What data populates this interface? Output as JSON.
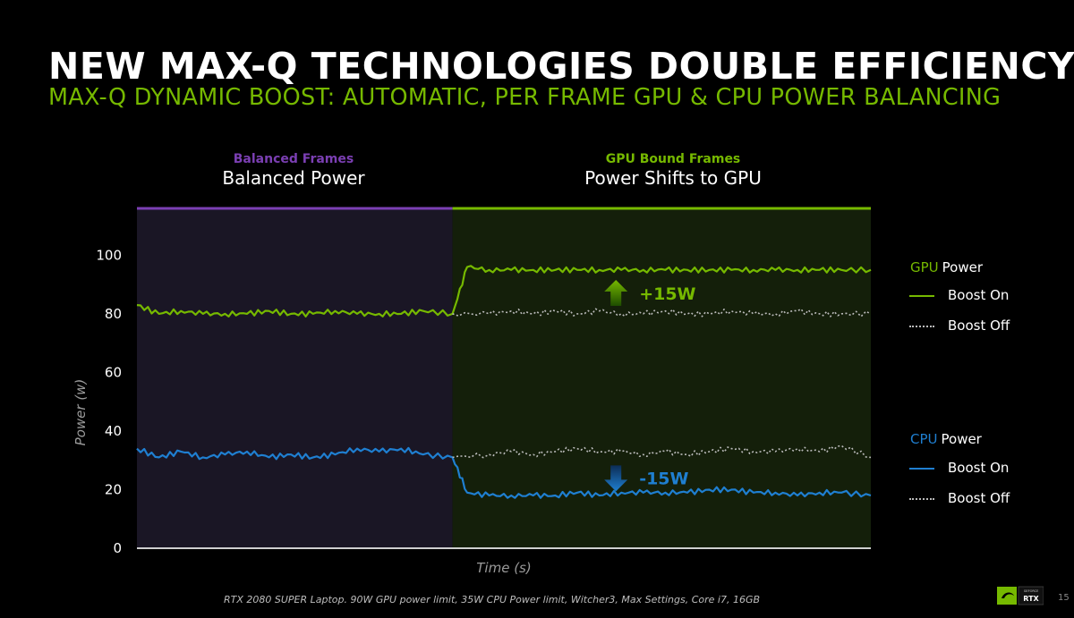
{
  "slide": {
    "title": "NEW MAX-Q TECHNOLOGIES DOUBLE EFFICIENCY",
    "subtitle": "MAX-Q DYNAMIC BOOST: AUTOMATIC, PER FRAME GPU & CPU POWER BALANCING",
    "footer": "RTX 2080 SUPER Laptop. 90W GPU power limit, 35W CPU Power limit, Witcher3, Max Settings, Core i7, 16GB",
    "page_number": "15",
    "logo_text": "RTX",
    "logo_small_text": "GEFORCE"
  },
  "colors": {
    "gpu": "#76b900",
    "cpu": "#1f7fd1",
    "balanced": "#7b3fb3",
    "offline": "#bbbbbb"
  },
  "chart_data": {
    "type": "line",
    "xlabel": "Time (s)",
    "ylabel": "Power (w)",
    "ylim": [
      0,
      116
    ],
    "yticks": [
      0,
      20,
      40,
      60,
      80,
      100
    ],
    "regions": [
      {
        "small": "Balanced Frames",
        "big": "Balanced Power",
        "x_range": [
          0,
          43
        ]
      },
      {
        "small": "GPU Bound Frames",
        "big": "Power Shifts to GPU",
        "x_range": [
          43,
          100
        ]
      }
    ],
    "annotations": [
      {
        "text": "+15W",
        "x": 66,
        "y": 87,
        "direction": "up"
      },
      {
        "text": "-15W",
        "x": 66,
        "y": 24,
        "direction": "down"
      }
    ],
    "legend": [
      {
        "group": "GPU",
        "group_suffix": "Power",
        "entries": [
          "Boost On",
          "Boost Off"
        ]
      },
      {
        "group": "CPU",
        "group_suffix": "Power",
        "entries": [
          "Boost On",
          "Boost Off"
        ]
      }
    ],
    "series": [
      {
        "name": "GPU Power Boost On",
        "style": "solid",
        "color": "gpu",
        "x": [
          0,
          3,
          6,
          9,
          12,
          15,
          18,
          21,
          24,
          27,
          30,
          33,
          36,
          39,
          43,
          45,
          48,
          51,
          54,
          57,
          60,
          63,
          66,
          69,
          72,
          75,
          78,
          81,
          84,
          87,
          90,
          93,
          96,
          100
        ],
        "y": [
          83,
          80,
          81,
          80,
          80,
          80,
          81,
          80,
          80,
          81,
          80,
          80,
          80,
          81,
          80,
          96,
          95,
          95,
          95,
          95,
          95,
          95,
          95,
          95,
          95,
          95,
          95,
          95,
          95,
          95,
          95,
          95,
          95,
          95
        ]
      },
      {
        "name": "GPU Power Boost Off",
        "style": "dotted",
        "color": "offline",
        "x": [
          43,
          48,
          51,
          54,
          57,
          60,
          63,
          66,
          69,
          72,
          75,
          78,
          81,
          84,
          87,
          90,
          93,
          96,
          100
        ],
        "y": [
          80,
          80,
          81,
          80,
          81,
          80,
          81,
          80,
          80,
          81,
          80,
          80,
          81,
          80,
          80,
          81,
          80,
          80,
          80
        ]
      },
      {
        "name": "CPU Power Boost On",
        "style": "solid",
        "color": "cpu",
        "x": [
          0,
          3,
          6,
          9,
          12,
          15,
          18,
          21,
          24,
          27,
          30,
          33,
          36,
          39,
          43,
          45,
          48,
          51,
          54,
          57,
          60,
          63,
          66,
          69,
          72,
          75,
          78,
          81,
          84,
          87,
          90,
          93,
          96,
          100
        ],
        "y": [
          34,
          31,
          33,
          31,
          32,
          33,
          31,
          32,
          31,
          32,
          34,
          33,
          34,
          32,
          31,
          19,
          18,
          18,
          18,
          18,
          19,
          18,
          19,
          19,
          19,
          19,
          20,
          20,
          19,
          19,
          18,
          19,
          19,
          18
        ]
      },
      {
        "name": "CPU Power Boost Off",
        "style": "dotted",
        "color": "offline",
        "x": [
          43,
          48,
          51,
          54,
          57,
          60,
          63,
          66,
          69,
          72,
          75,
          78,
          81,
          84,
          87,
          90,
          93,
          96,
          100
        ],
        "y": [
          31,
          32,
          33,
          32,
          33,
          34,
          33,
          33,
          32,
          33,
          32,
          33,
          34,
          33,
          33,
          34,
          33,
          35,
          31
        ]
      }
    ]
  }
}
